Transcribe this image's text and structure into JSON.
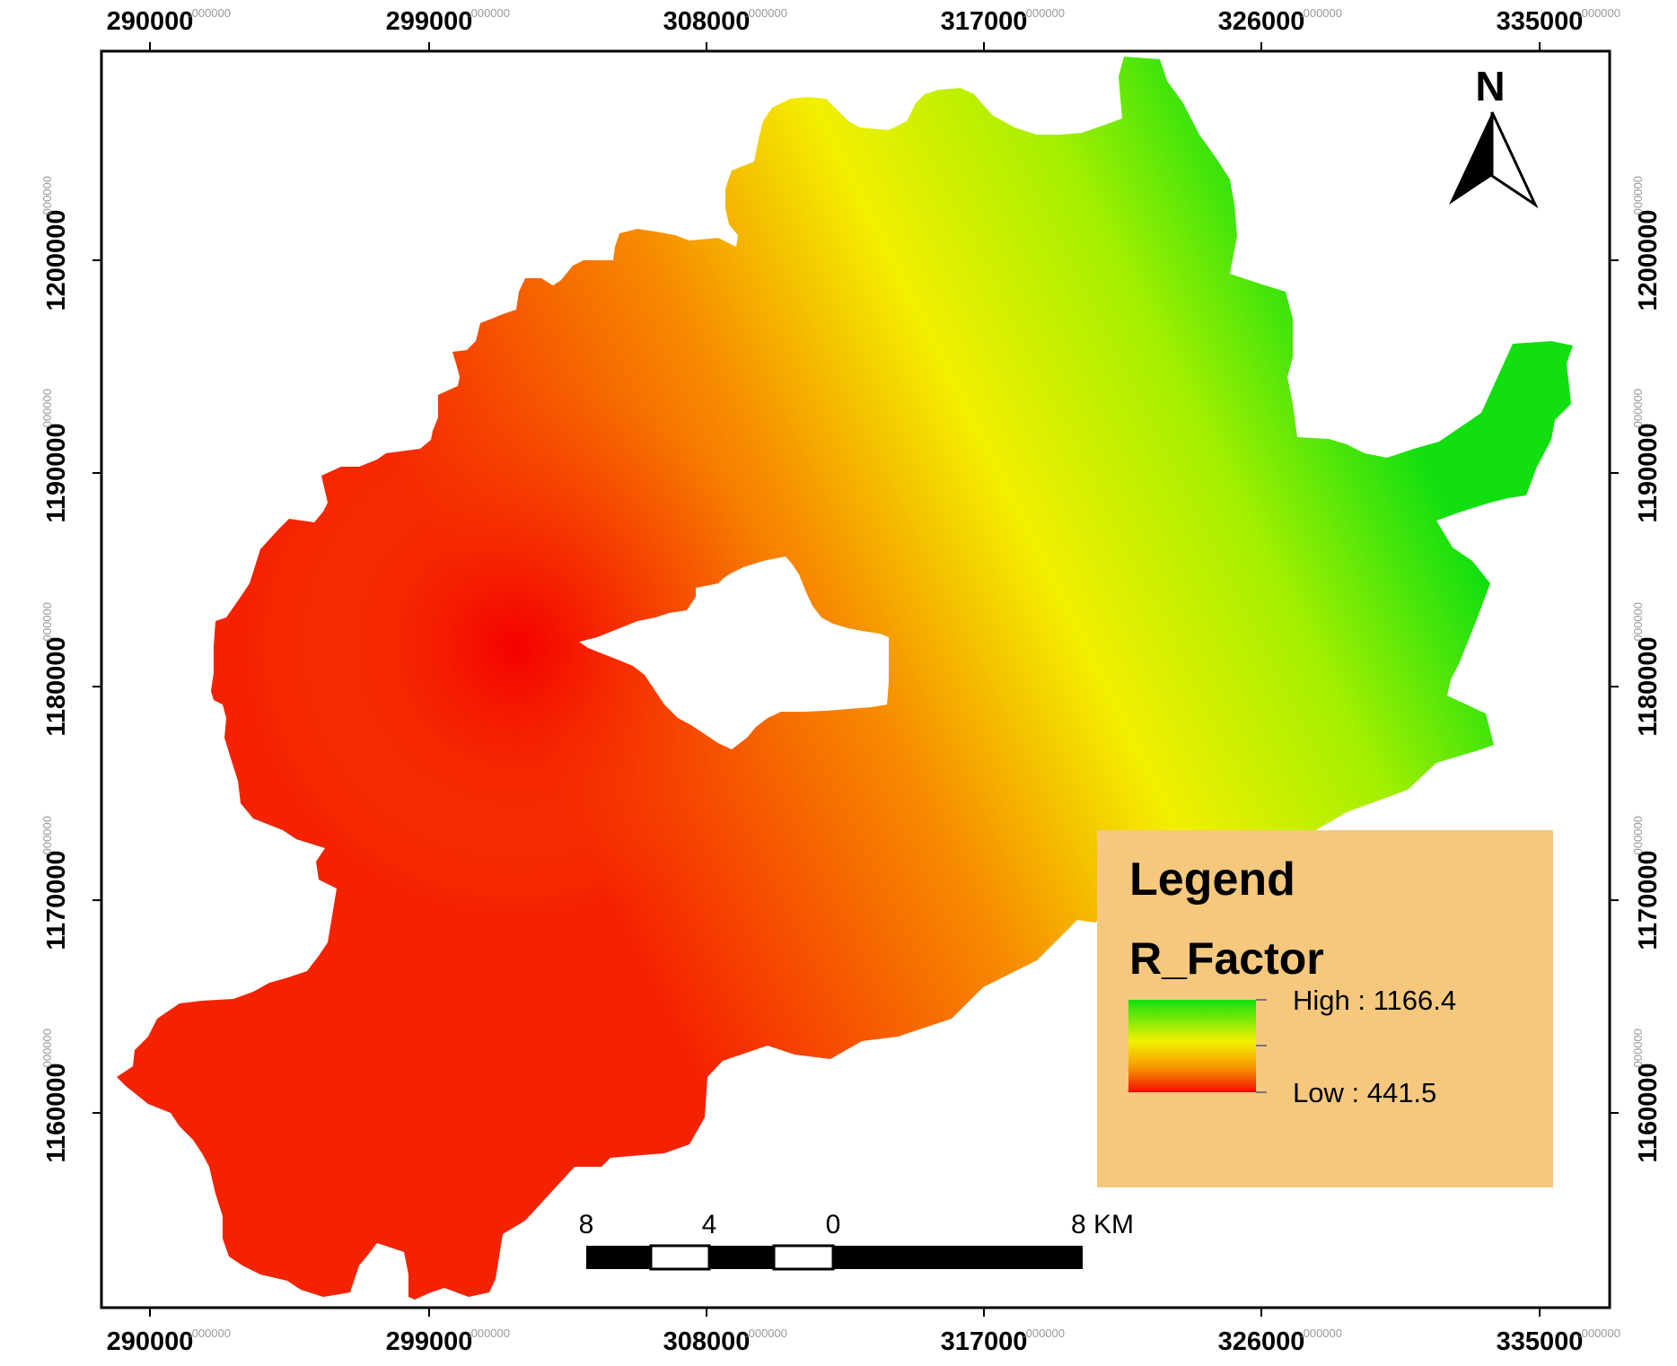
{
  "map": {
    "x_ticks": [
      "290000",
      "299000",
      "308000",
      "317000",
      "326000",
      "335000"
    ],
    "y_ticks": [
      "1200000",
      "1190000",
      "1180000",
      "1170000",
      "1160000"
    ],
    "tick_decimal": ".000000",
    "colors": {
      "low": "#f40b00",
      "mid": "#f2f200",
      "high": "#12e012",
      "frame": "#000000",
      "legend_bg": "#f5c87e"
    }
  },
  "north_arrow": {
    "label": "N"
  },
  "legend": {
    "title": "Legend",
    "layer_name": "R_Factor",
    "high_label": "High : 1166.4",
    "low_label": "Low : 441.5",
    "high_value": 1166.4,
    "low_value": 441.5
  },
  "scale_bar": {
    "labels": [
      "8",
      "4",
      "0",
      "8 KM"
    ]
  }
}
